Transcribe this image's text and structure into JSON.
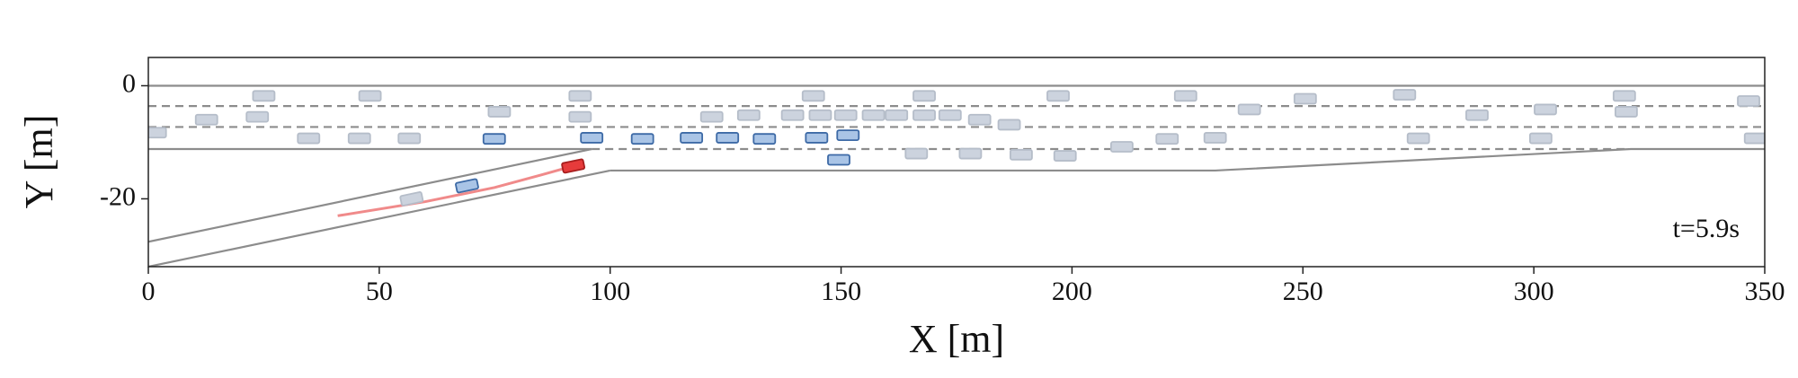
{
  "chart_data": {
    "type": "scatter",
    "xlabel": "X [m]",
    "ylabel": "Y [m]",
    "annotation": "t=5.9s",
    "xlim": [
      0,
      350
    ],
    "ylim": [
      -32,
      5
    ],
    "xticks": [
      0,
      50,
      100,
      150,
      200,
      250,
      300,
      350
    ],
    "yticks": [
      0,
      -20
    ],
    "road": [
      {
        "style": "solid",
        "x": [
          0,
          350
        ],
        "y": [
          0,
          0
        ]
      },
      {
        "style": "dashed",
        "x": [
          0,
          350
        ],
        "y": [
          -3.6,
          -3.6
        ]
      },
      {
        "style": "dashed",
        "x": [
          0,
          350
        ],
        "y": [
          -7.3,
          -7.3
        ]
      },
      {
        "style": "solid",
        "x": [
          0,
          96
        ],
        "y": [
          -11.2,
          -11.2
        ]
      },
      {
        "style": "dashed",
        "x": [
          96,
          320
        ],
        "y": [
          -11.2,
          -11.2
        ]
      },
      {
        "style": "solid",
        "x": [
          100,
          231,
          321,
          350
        ],
        "y": [
          -15,
          -15,
          -11.2,
          -11.2
        ]
      },
      {
        "style": "solid",
        "x": [
          0,
          96
        ],
        "y": [
          -27.6,
          -11.2
        ]
      },
      {
        "style": "solid",
        "x": [
          0,
          100
        ],
        "y": [
          -32,
          -15
        ]
      }
    ],
    "trajectory": {
      "color": "#f08a8a",
      "x": [
        41,
        60,
        75,
        85,
        92
      ],
      "y": [
        -23,
        -20.5,
        -18,
        -15.8,
        -14.2
      ]
    },
    "series": [
      {
        "color": "#ccd3de",
        "edge": "#b5bdc9",
        "x": [
          25,
          48,
          93.5,
          144,
          168,
          197,
          224.6,
          250.5,
          272,
          319.6,
          346.5,
          12.6,
          23.6,
          76,
          93.5,
          122,
          130,
          139.5,
          145.5,
          151,
          157,
          162,
          168,
          173.6,
          180,
          186.4,
          238.4,
          287.7,
          302.5,
          320,
          1.5,
          34.7,
          45.7,
          56.5,
          275,
          301.5,
          348,
          166.3,
          178,
          189,
          198.5,
          210.8,
          220.6,
          231,
          57
        ],
        "y": [
          -1.8,
          -1.8,
          -1.8,
          -1.8,
          -1.8,
          -1.8,
          -1.8,
          -2.3,
          -1.6,
          -1.8,
          -2.7,
          -6,
          -5.5,
          -4.6,
          -5.5,
          -5.5,
          -5.2,
          -5.2,
          -5.2,
          -5.2,
          -5.2,
          -5.2,
          -5.2,
          -5.2,
          -6,
          -6.9,
          -4.2,
          -5.2,
          -4.2,
          -4.6,
          -8.3,
          -9.3,
          -9.3,
          -9.3,
          -9.3,
          -9.3,
          -9.3,
          -12,
          -12,
          -12.2,
          -12.4,
          -10.8,
          -9.4,
          -9.2,
          -20
        ]
      },
      {
        "color": "#a9c4e6",
        "edge": "#3d6aa6",
        "x": [
          74.9,
          96,
          107,
          117.6,
          125.4,
          133.4,
          144.7,
          151.5,
          149.5,
          69
        ],
        "y": [
          -9.4,
          -9.2,
          -9.4,
          -9.2,
          -9.2,
          -9.4,
          -9.2,
          -8.75,
          -13.1,
          -17.7
        ]
      },
      {
        "color": "#e63b3b",
        "edge": "#a81e1e",
        "x": [
          92
        ],
        "y": [
          -14.2
        ]
      }
    ]
  }
}
